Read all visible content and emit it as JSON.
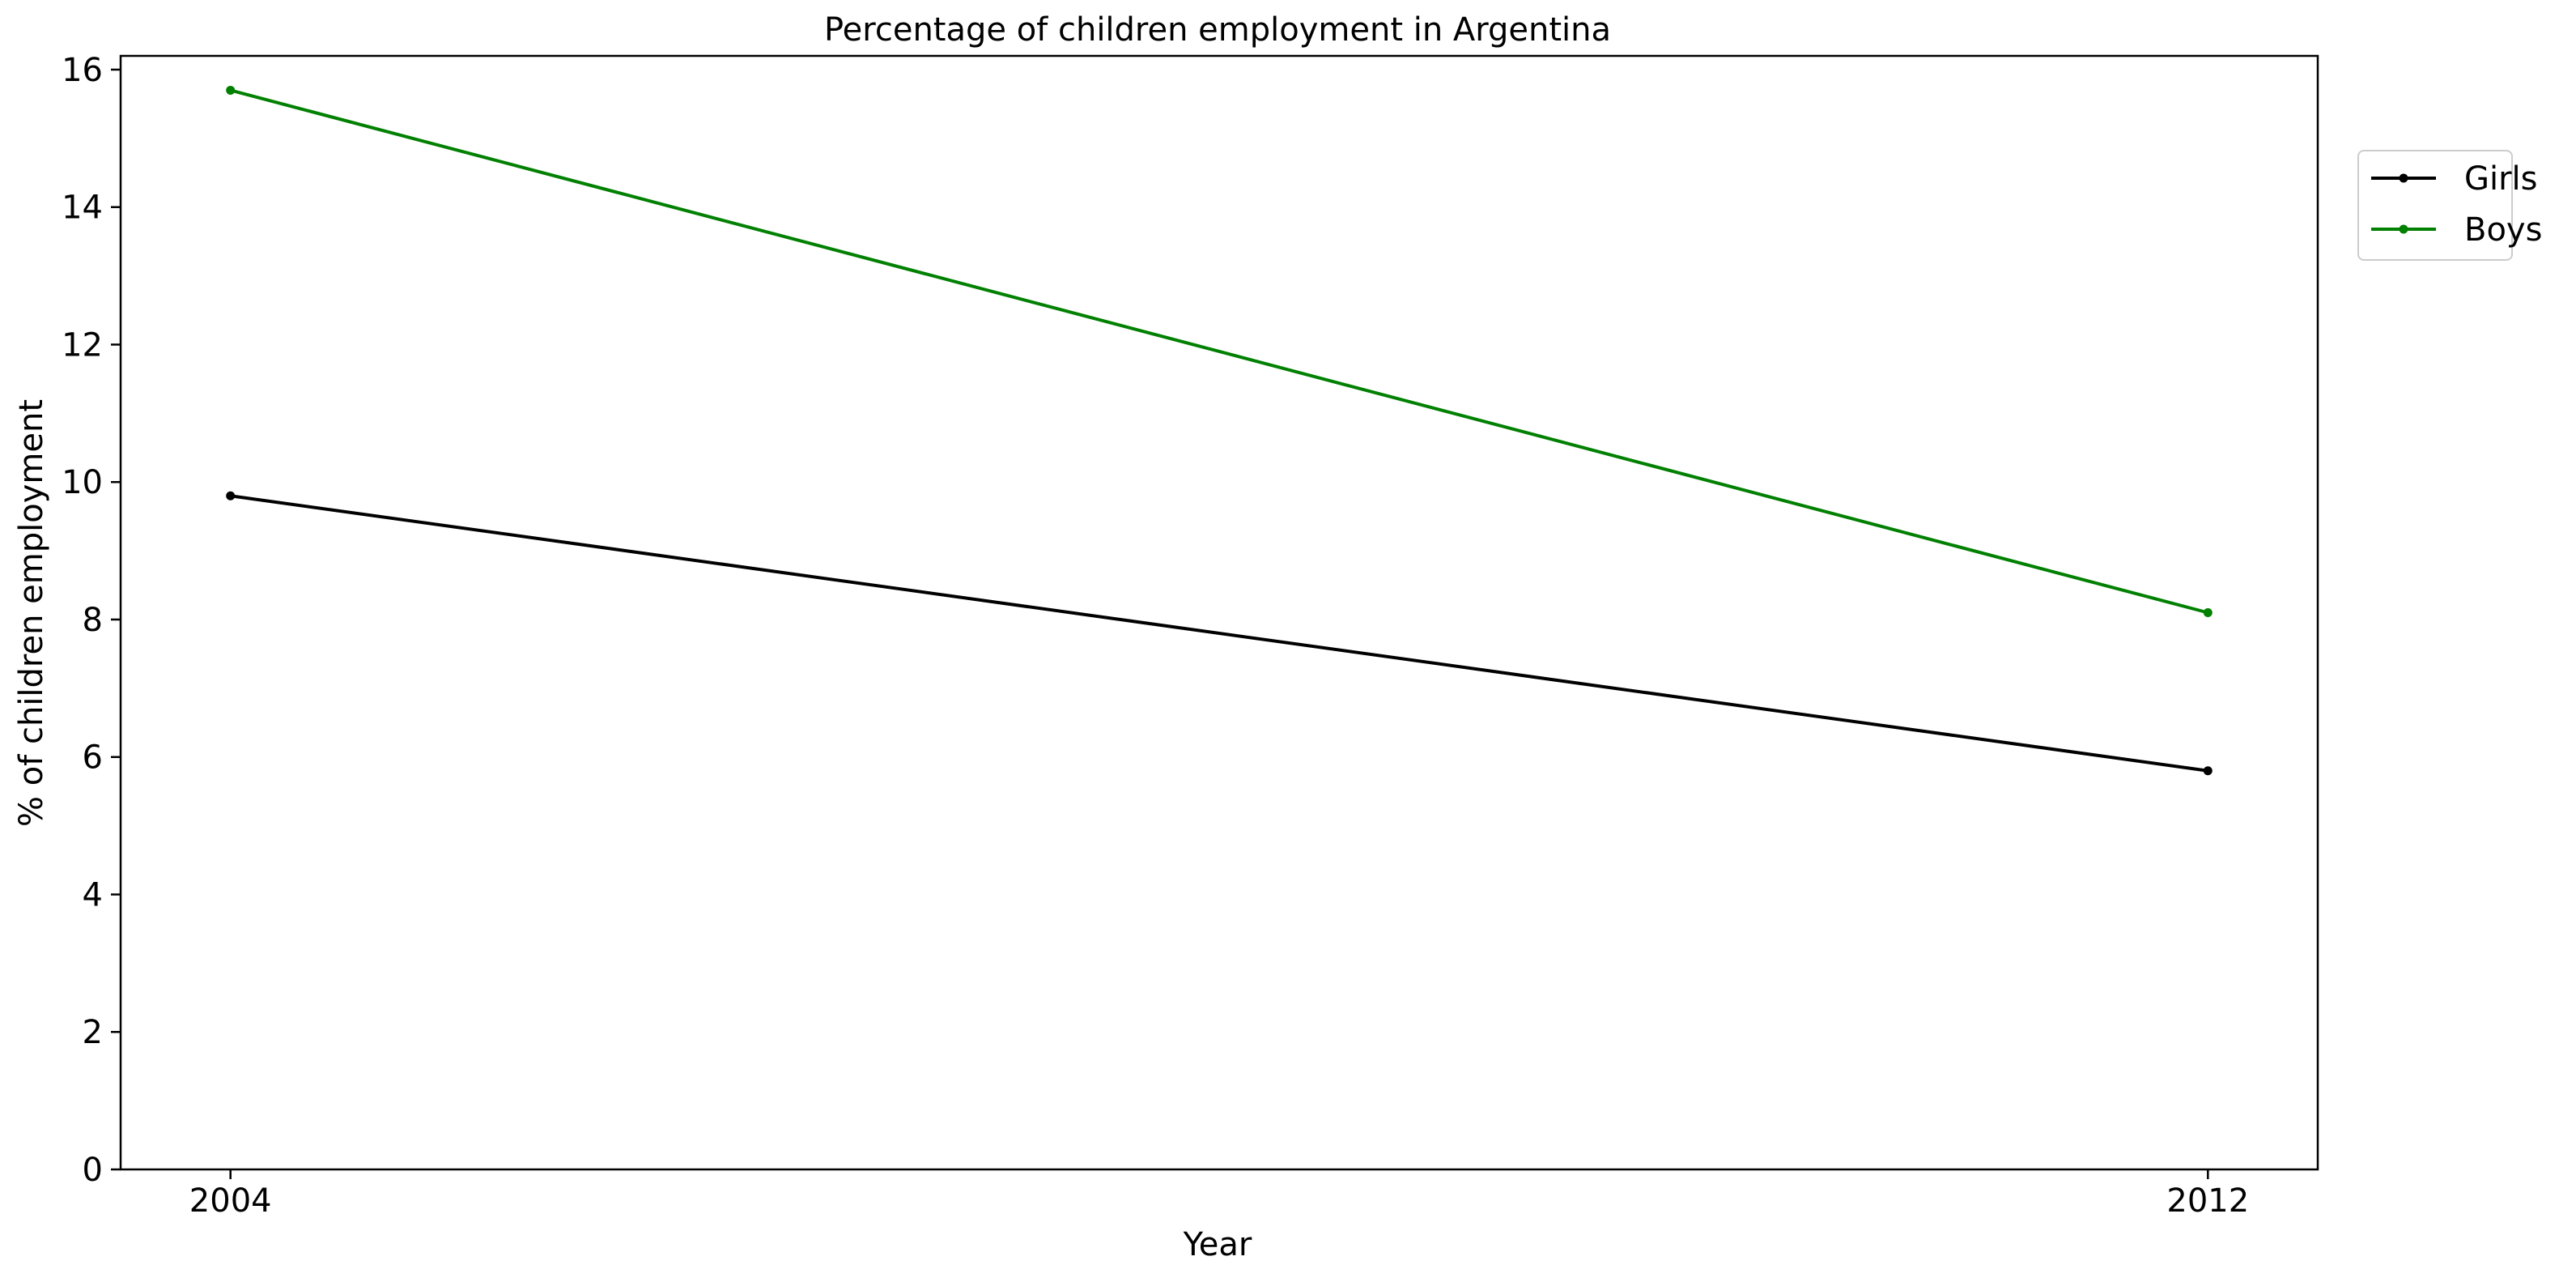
{
  "chart_data": {
    "type": "line",
    "title": "Percentage of children employment in Argentina",
    "xlabel": "Year",
    "ylabel": "% of children employment",
    "x": [
      2004,
      2012
    ],
    "x_tick_labels": [
      "2004",
      "2012"
    ],
    "ylim": [
      0,
      16.2
    ],
    "y_ticks": [
      0,
      2,
      4,
      6,
      8,
      10,
      12,
      14,
      16
    ],
    "grid": false,
    "legend_position": "top-right, outside plot",
    "series": [
      {
        "name": "Girls",
        "color": "#000000",
        "marker": "point",
        "values": [
          9.8,
          5.8
        ]
      },
      {
        "name": "Boys",
        "color": "#008000",
        "marker": "point",
        "values": [
          15.7,
          8.1
        ]
      }
    ]
  }
}
